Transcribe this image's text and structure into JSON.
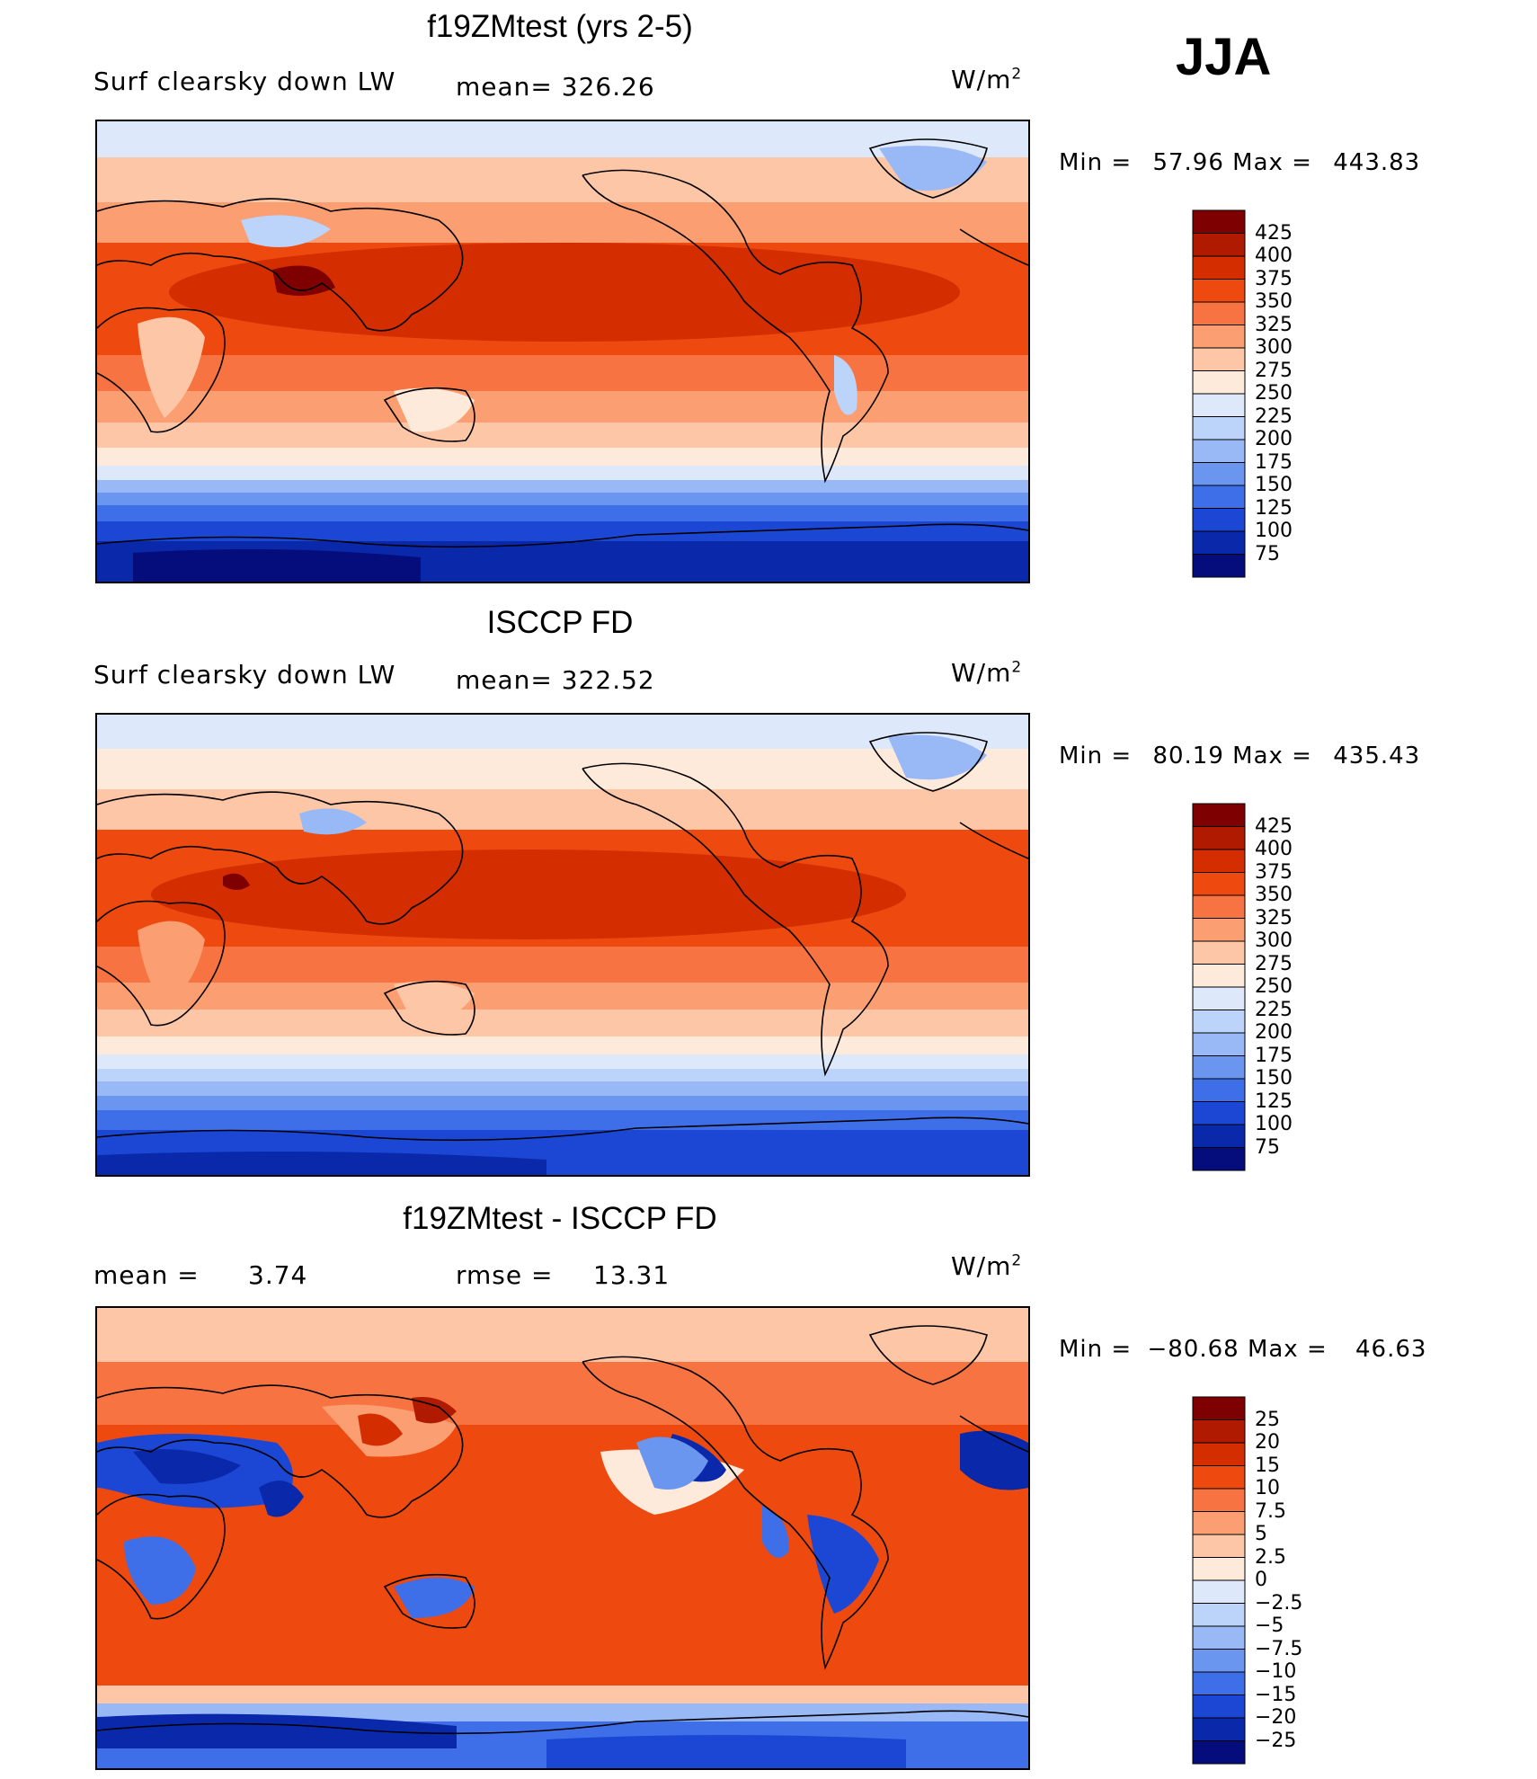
{
  "season": "JJA",
  "panels": [
    {
      "title": "f19ZMtest (yrs 2-5)",
      "left_label": "Surf clearsky down LW",
      "center_label": "mean= 326.26",
      "unit": "W/m",
      "unit_sup": "2",
      "min_label": "Min =",
      "min_value": "57.96",
      "max_label": "Max =",
      "max_value": "443.83",
      "levels": [
        "425",
        "400",
        "375",
        "350",
        "325",
        "300",
        "275",
        "250",
        "225",
        "200",
        "175",
        "150",
        "125",
        "100",
        "75"
      ],
      "palette": "abs"
    },
    {
      "title": "ISCCP FD",
      "left_label": "Surf clearsky down LW",
      "center_label": "mean= 322.52",
      "unit": "W/m",
      "unit_sup": "2",
      "min_label": "Min =",
      "min_value": "80.19",
      "max_label": "Max =",
      "max_value": "435.43",
      "levels": [
        "425",
        "400",
        "375",
        "350",
        "325",
        "300",
        "275",
        "250",
        "225",
        "200",
        "175",
        "150",
        "125",
        "100",
        "75"
      ],
      "palette": "abs"
    },
    {
      "title": "f19ZMtest - ISCCP FD",
      "left_label": "mean =",
      "left_value": "3.74",
      "center_label": "rmse =",
      "center_value": "13.31",
      "unit": "W/m",
      "unit_sup": "2",
      "min_label": "Min =",
      "min_value": "−80.68",
      "max_label": "Max =",
      "max_value": "46.63",
      "levels": [
        "25",
        "20",
        "15",
        "10",
        "7.5",
        "5",
        "2.5",
        "0",
        "−2.5",
        "−5",
        "−7.5",
        "−10",
        "−15",
        "−20",
        "−25"
      ],
      "palette": "diff"
    }
  ],
  "colors": {
    "scale": [
      "#7f0000",
      "#b01a00",
      "#d42d00",
      "#ee4a0f",
      "#f77442",
      "#fb9e72",
      "#fdc6a6",
      "#feeadb",
      "#dde9fb",
      "#bcd3fa",
      "#98b8f6",
      "#6b96ef",
      "#3f6fe8",
      "#1b47d4",
      "#0a28aa",
      "#050c7c"
    ]
  }
}
